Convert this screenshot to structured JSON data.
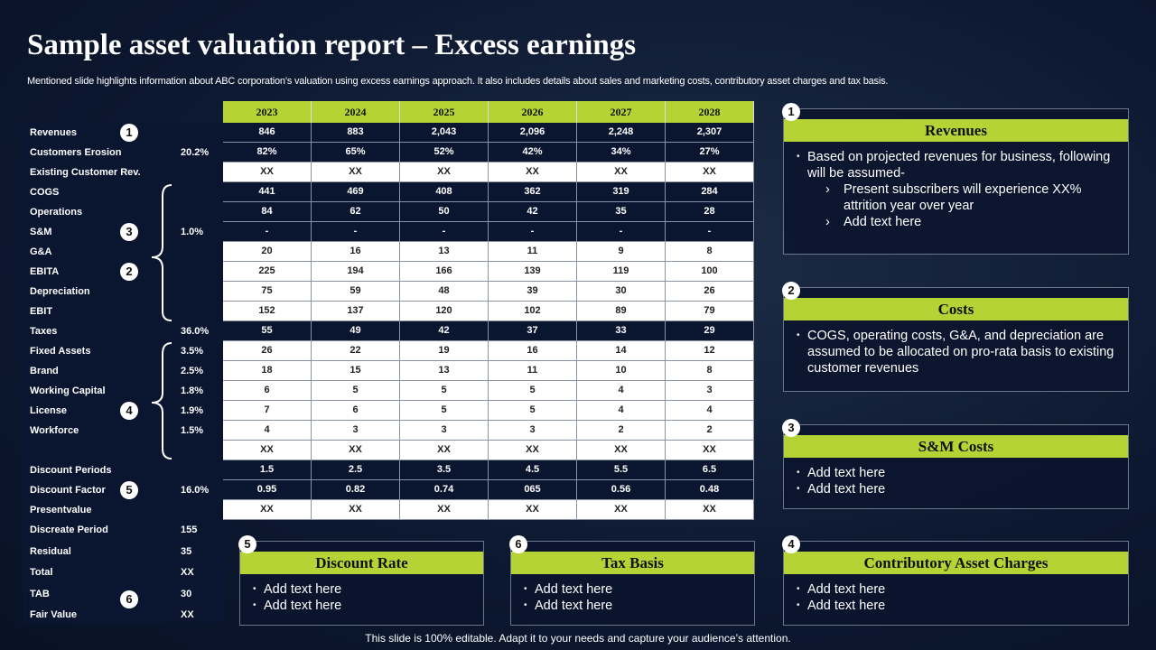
{
  "title": "Sample asset valuation report – Excess earnings",
  "subtitle": "Mentioned slide highlights information about ABC corporation’s valuation using excess earnings approach. It also includes details about sales and marketing costs, contributory asset charges and tax basis.",
  "table": {
    "columns": [
      "2023",
      "2024",
      "2025",
      "2026",
      "2027",
      "2028"
    ],
    "rows": [
      {
        "label": "Revenues",
        "badge": "1",
        "shade": "dark",
        "values": [
          "846",
          "883",
          "2,043",
          "2,096",
          "2,248",
          "2,307"
        ]
      },
      {
        "label": "Customers Erosion",
        "pct": "20.2%",
        "shade": "dark",
        "values": [
          "82%",
          "65%",
          "52%",
          "42%",
          "34%",
          "27%"
        ]
      },
      {
        "label": "Existing Customer Rev.",
        "shade": "light",
        "values": [
          "XX",
          "XX",
          "XX",
          "XX",
          "XX",
          "XX"
        ]
      },
      {
        "label": "COGS",
        "shade": "dark",
        "values": [
          "441",
          "469",
          "408",
          "362",
          "319",
          "284"
        ]
      },
      {
        "label": "Operations",
        "shade": "dark",
        "values": [
          "84",
          "62",
          "50",
          "42",
          "35",
          "28"
        ]
      },
      {
        "label": "S&M",
        "badge": "3",
        "pct": "1.0%",
        "shade": "dark",
        "values": [
          "-",
          "-",
          "-",
          "-",
          "-",
          "-"
        ]
      },
      {
        "label": "G&A",
        "shade": "light",
        "values": [
          "20",
          "16",
          "13",
          "11",
          "9",
          "8"
        ]
      },
      {
        "label": "EBITA",
        "badge": "2",
        "shade": "light",
        "values": [
          "225",
          "194",
          "166",
          "139",
          "119",
          "100"
        ]
      },
      {
        "label": "Depreciation",
        "shade": "light",
        "values": [
          "75",
          "59",
          "48",
          "39",
          "30",
          "26"
        ]
      },
      {
        "label": "EBIT",
        "shade": "light",
        "values": [
          "152",
          "137",
          "120",
          "102",
          "89",
          "79"
        ]
      },
      {
        "label": "Taxes",
        "pct": "36.0%",
        "shade": "dark",
        "values": [
          "55",
          "49",
          "42",
          "37",
          "33",
          "29"
        ]
      },
      {
        "label": "Fixed Assets",
        "pct": "3.5%",
        "shade": "light",
        "values": [
          "26",
          "22",
          "19",
          "16",
          "14",
          "12"
        ]
      },
      {
        "label": "Brand",
        "pct": "2.5%",
        "shade": "light",
        "values": [
          "18",
          "15",
          "13",
          "11",
          "10",
          "8"
        ]
      },
      {
        "label": "Working Capital",
        "pct": "1.8%",
        "shade": "light",
        "values": [
          "6",
          "5",
          "5",
          "5",
          "4",
          "3"
        ]
      },
      {
        "label": "License",
        "badge": "4",
        "pct": "1.9%",
        "shade": "light",
        "values": [
          "7",
          "6",
          "5",
          "5",
          "4",
          "4"
        ]
      },
      {
        "label": "Workforce",
        "pct": "1.5%",
        "shade": "light",
        "values": [
          "4",
          "3",
          "3",
          "3",
          "2",
          "2"
        ]
      },
      {
        "shade": "light",
        "values": [
          "XX",
          "XX",
          "XX",
          "XX",
          "XX",
          "XX"
        ]
      },
      {
        "label": "Discount Periods",
        "shade": "dark",
        "values": [
          "1.5",
          "2.5",
          "3.5",
          "4.5",
          "5.5",
          "6.5"
        ]
      },
      {
        "label": "Discount Factor",
        "badge": "5",
        "pct": "16.0%",
        "shade": "dark",
        "values": [
          "0.95",
          "0.82",
          "0.74",
          "065",
          "0.56",
          "0.48"
        ]
      },
      {
        "label": "Presentvalue",
        "shade": "light",
        "values": [
          "XX",
          "XX",
          "XX",
          "XX",
          "XX",
          "XX"
        ]
      }
    ],
    "extra_rows": [
      {
        "label": "Discreate Period",
        "pct": "155"
      },
      {
        "label": "Residual",
        "pct": "35"
      },
      {
        "label": "Total",
        "pct": "XX"
      },
      {
        "label": "TAB",
        "badge": "6",
        "pct": "30"
      },
      {
        "label": "Fair Value",
        "pct": "XX"
      }
    ]
  },
  "boxes": [
    {
      "number": "1",
      "title": "Revenues",
      "bullets": [
        {
          "text": "Based on projected revenues for business, following will be assumed-",
          "sub": [
            "Present subscribers will experience XX% attrition year over year",
            "Add text here"
          ]
        }
      ]
    },
    {
      "number": "2",
      "title": "Costs",
      "bullets": [
        {
          "text": "COGS, operating costs, G&A, and depreciation are assumed to be allocated on pro-rata basis to existing customer revenues"
        }
      ]
    },
    {
      "number": "3",
      "title": "S&M Costs",
      "bullets": [
        {
          "text": "Add text here"
        },
        {
          "text": "Add text here"
        }
      ]
    },
    {
      "number": "5",
      "title": "Discount Rate",
      "bullets": [
        {
          "text": "Add text here"
        },
        {
          "text": "Add text here"
        }
      ]
    },
    {
      "number": "6",
      "title": "Tax Basis",
      "bullets": [
        {
          "text": "Add text here"
        },
        {
          "text": "Add text here"
        }
      ]
    },
    {
      "number": "4",
      "title": "Contributory Asset Charges",
      "bullets": [
        {
          "text": "Add text here"
        },
        {
          "text": "Add text here"
        }
      ]
    }
  ],
  "footer": "This slide is 100% editable. Adapt it to your needs and capture your audience’s attention."
}
